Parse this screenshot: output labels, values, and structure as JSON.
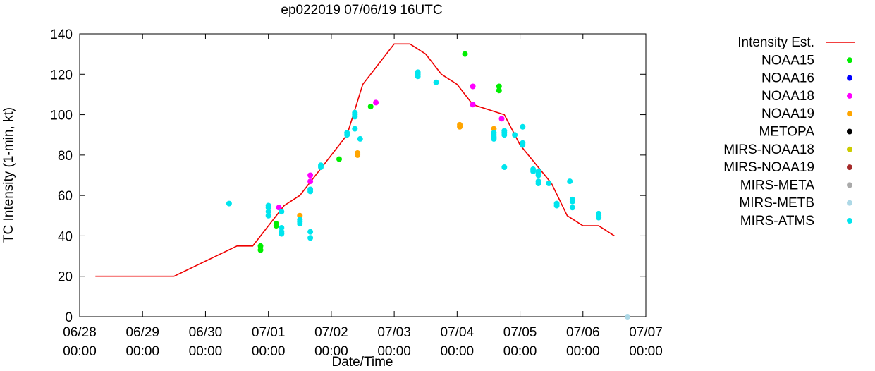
{
  "chart_data": {
    "type": "scatter",
    "title": "ep022019 07/06/19 16UTC",
    "xlabel": "Date/Time",
    "ylabel": "TC Intensity (1-min, kt)",
    "xlim": [
      "06/28 00:00",
      "07/07 00:00"
    ],
    "ylim": [
      0,
      140
    ],
    "y_ticks": [
      0,
      20,
      40,
      60,
      80,
      100,
      120,
      140
    ],
    "x_ticks": [
      {
        "date": "06/28",
        "time": "00:00"
      },
      {
        "date": "06/29",
        "time": "00:00"
      },
      {
        "date": "06/30",
        "time": "00:00"
      },
      {
        "date": "07/01",
        "time": "00:00"
      },
      {
        "date": "07/02",
        "time": "00:00"
      },
      {
        "date": "07/03",
        "time": "00:00"
      },
      {
        "date": "07/04",
        "time": "00:00"
      },
      {
        "date": "07/05",
        "time": "00:00"
      },
      {
        "date": "07/06",
        "time": "00:00"
      },
      {
        "date": "07/07",
        "time": "00:00"
      }
    ],
    "grid": false,
    "legend_position": "right",
    "intensity_line": {
      "name": "Intensity Est.",
      "color": "#ee0000",
      "points": [
        [
          "06/28 06:00",
          20
        ],
        [
          "06/29 12:00",
          20
        ],
        [
          "06/30 12:00",
          35
        ],
        [
          "06/30 18:00",
          35
        ],
        [
          "07/01 00:00",
          45
        ],
        [
          "07/01 06:00",
          55
        ],
        [
          "07/01 12:00",
          60
        ],
        [
          "07/01 18:00",
          70
        ],
        [
          "07/02 06:00",
          90
        ],
        [
          "07/02 12:00",
          115
        ],
        [
          "07/02 18:00",
          125
        ],
        [
          "07/03 00:00",
          135
        ],
        [
          "07/03 06:00",
          135
        ],
        [
          "07/03 12:00",
          130
        ],
        [
          "07/03 18:00",
          120
        ],
        [
          "07/04 00:00",
          115
        ],
        [
          "07/04 06:00",
          105
        ],
        [
          "07/04 18:00",
          100
        ],
        [
          "07/05 00:00",
          85
        ],
        [
          "07/05 12:00",
          66
        ],
        [
          "07/05 18:00",
          50
        ],
        [
          "07/06 00:00",
          45
        ],
        [
          "07/06 06:00",
          45
        ],
        [
          "07/06 12:00",
          40
        ]
      ]
    },
    "series": [
      {
        "name": "NOAA15",
        "color": "#00ee00",
        "points": [
          [
            "06/30 21:00",
            33
          ],
          [
            "06/30 21:00",
            35
          ],
          [
            "07/01 03:00",
            45
          ],
          [
            "07/01 03:00",
            46
          ],
          [
            "07/02 03:00",
            78
          ],
          [
            "07/02 15:00",
            104
          ],
          [
            "07/04 03:00",
            130
          ],
          [
            "07/04 16:00",
            112
          ],
          [
            "07/04 16:00",
            114
          ]
        ]
      },
      {
        "name": "NOAA16",
        "color": "#0000ff",
        "points": []
      },
      {
        "name": "NOAA18",
        "color": "#ff00ff",
        "points": [
          [
            "07/01 04:00",
            54
          ],
          [
            "07/01 16:00",
            67
          ],
          [
            "07/01 16:00",
            70
          ],
          [
            "07/02 17:00",
            106
          ],
          [
            "07/04 06:00",
            105
          ],
          [
            "07/04 06:00",
            114
          ],
          [
            "07/04 17:00",
            98
          ]
        ]
      },
      {
        "name": "NOAA19",
        "color": "#ffa500",
        "points": [
          [
            "07/01 12:00",
            50
          ],
          [
            "07/02 10:00",
            80
          ],
          [
            "07/02 10:00",
            81
          ],
          [
            "07/04 01:00",
            94
          ],
          [
            "07/04 01:00",
            95
          ],
          [
            "07/04 14:00",
            93
          ]
        ]
      },
      {
        "name": "METOPA",
        "color": "#000000",
        "points": []
      },
      {
        "name": "MIRS-NOAA18",
        "color": "#cccc00",
        "points": []
      },
      {
        "name": "MIRS-NOAA19",
        "color": "#a52a2a",
        "points": []
      },
      {
        "name": "MIRS-META",
        "color": "#aaaaaa",
        "points": []
      },
      {
        "name": "MIRS-METB",
        "color": "#add8e6",
        "points": [
          [
            "07/06 17:00",
            0
          ]
        ]
      },
      {
        "name": "MIRS-ATMS",
        "color": "#00e5ee",
        "points": [
          [
            "06/30 09:00",
            56
          ],
          [
            "07/01 00:00",
            50
          ],
          [
            "07/01 00:00",
            52
          ],
          [
            "07/01 00:00",
            54
          ],
          [
            "07/01 00:00",
            55
          ],
          [
            "07/01 05:00",
            41
          ],
          [
            "07/01 05:00",
            42
          ],
          [
            "07/01 05:00",
            44
          ],
          [
            "07/01 05:00",
            52
          ],
          [
            "07/01 12:00",
            46
          ],
          [
            "07/01 12:00",
            47
          ],
          [
            "07/01 12:00",
            48
          ],
          [
            "07/01 16:00",
            39
          ],
          [
            "07/01 16:00",
            42
          ],
          [
            "07/01 16:00",
            62
          ],
          [
            "07/01 16:00",
            63
          ],
          [
            "07/01 20:00",
            74
          ],
          [
            "07/01 20:00",
            75
          ],
          [
            "07/02 06:00",
            90
          ],
          [
            "07/02 06:00",
            91
          ],
          [
            "07/02 09:00",
            93
          ],
          [
            "07/02 09:00",
            99
          ],
          [
            "07/02 09:00",
            100
          ],
          [
            "07/02 09:00",
            101
          ],
          [
            "07/02 11:00",
            88
          ],
          [
            "07/03 09:00",
            119
          ],
          [
            "07/03 09:00",
            120
          ],
          [
            "07/03 09:00",
            121
          ],
          [
            "07/03 16:00",
            116
          ],
          [
            "07/04 14:00",
            88
          ],
          [
            "07/04 14:00",
            89
          ],
          [
            "07/04 14:00",
            90
          ],
          [
            "07/04 14:00",
            91
          ],
          [
            "07/04 18:00",
            74
          ],
          [
            "07/04 18:00",
            90
          ],
          [
            "07/04 18:00",
            91
          ],
          [
            "07/04 18:00",
            92
          ],
          [
            "07/04 22:00",
            90
          ],
          [
            "07/05 01:00",
            85
          ],
          [
            "07/05 01:00",
            86
          ],
          [
            "07/05 01:00",
            94
          ],
          [
            "07/05 05:00",
            72
          ],
          [
            "07/05 05:00",
            73
          ],
          [
            "07/05 07:00",
            66
          ],
          [
            "07/05 07:00",
            67
          ],
          [
            "07/05 07:00",
            70
          ],
          [
            "07/05 07:00",
            71
          ],
          [
            "07/05 07:00",
            72
          ],
          [
            "07/05 11:00",
            66
          ],
          [
            "07/05 14:00",
            55
          ],
          [
            "07/05 14:00",
            56
          ],
          [
            "07/05 19:00",
            67
          ],
          [
            "07/05 20:00",
            54
          ],
          [
            "07/05 20:00",
            57
          ],
          [
            "07/05 20:00",
            58
          ],
          [
            "07/06 06:00",
            49
          ],
          [
            "07/06 06:00",
            50
          ],
          [
            "07/06 06:00",
            51
          ]
        ]
      }
    ]
  }
}
